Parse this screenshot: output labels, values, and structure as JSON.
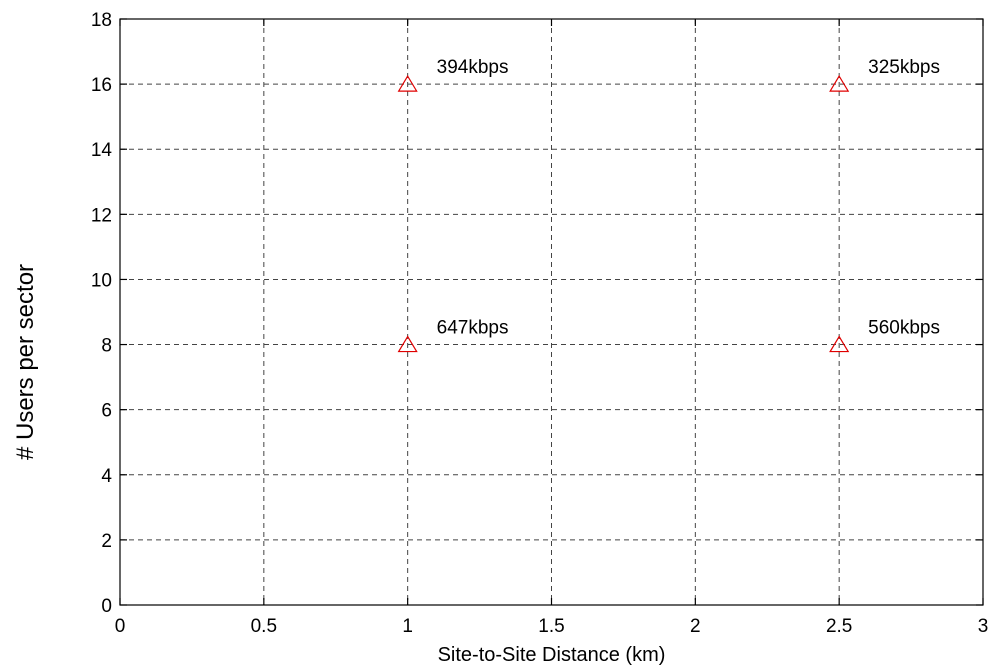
{
  "chart_data": {
    "type": "scatter",
    "title": "",
    "xlabel": "Site-to-Site Distance (km)",
    "ylabel": "# Users per sector",
    "xlim": [
      0,
      3
    ],
    "ylim": [
      0,
      18
    ],
    "xticks": [
      0,
      0.5,
      1,
      1.5,
      2,
      2.5,
      3
    ],
    "xtick_labels": [
      "0",
      "0.5",
      "1",
      "1.5",
      "2",
      "2.5",
      "3"
    ],
    "yticks": [
      0,
      2,
      4,
      6,
      8,
      10,
      12,
      14,
      16,
      18
    ],
    "ytick_labels": [
      "0",
      "2",
      "4",
      "6",
      "8",
      "10",
      "12",
      "14",
      "16",
      "18"
    ],
    "grid": true,
    "marker": "triangle",
    "marker_color": "#e00000",
    "series": [
      {
        "points": [
          {
            "x": 1,
            "y": 16,
            "label": "394kbps"
          },
          {
            "x": 2.5,
            "y": 16,
            "label": "325kbps"
          },
          {
            "x": 1,
            "y": 8,
            "label": "647kbps"
          },
          {
            "x": 2.5,
            "y": 8,
            "label": "560kbps"
          }
        ]
      }
    ]
  }
}
